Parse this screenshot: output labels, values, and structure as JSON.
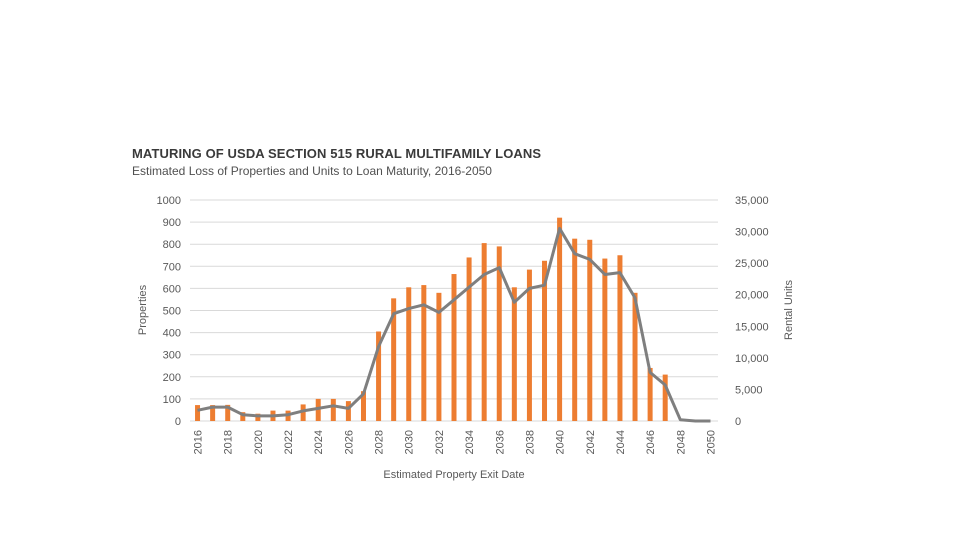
{
  "chart_data": {
    "type": "bar",
    "title": "MATURING OF USDA SECTION 515 RURAL MULTIFAMILY LOANS",
    "subtitle": "Estimated Loss of Properties and Units to Loan Maturity, 2016-2050",
    "xlabel": "Estimated Property Exit Date",
    "ylabel": "Properties",
    "y2label": "Rental Units",
    "ylim": [
      0,
      1000
    ],
    "y2lim": [
      0,
      35000
    ],
    "y_ticks": [
      "0",
      "100",
      "200",
      "300",
      "400",
      "500",
      "600",
      "700",
      "800",
      "900",
      "1000"
    ],
    "y2_ticks": [
      "0",
      "5,000",
      "10,000",
      "15,000",
      "20,000",
      "25,000",
      "30,000",
      "35,000"
    ],
    "x": [
      2016,
      2017,
      2018,
      2019,
      2020,
      2021,
      2022,
      2023,
      2024,
      2025,
      2026,
      2027,
      2028,
      2029,
      2030,
      2031,
      2032,
      2033,
      2034,
      2035,
      2036,
      2037,
      2038,
      2039,
      2040,
      2041,
      2042,
      2043,
      2044,
      2045,
      2046,
      2047,
      2048,
      2049,
      2050
    ],
    "x_tick_labels": [
      "2016",
      "2018",
      "2020",
      "2022",
      "2024",
      "2026",
      "2028",
      "2030",
      "2032",
      "2034",
      "2036",
      "2038",
      "2040",
      "2042",
      "2044",
      "2046",
      "2048",
      "2050"
    ],
    "series": [
      {
        "name": "Properties",
        "type": "bar",
        "axis": "left",
        "color": "#ed7d31",
        "values": [
          72,
          72,
          73,
          40,
          33,
          47,
          47,
          75,
          100,
          100,
          90,
          135,
          405,
          555,
          605,
          615,
          580,
          665,
          740,
          805,
          790,
          605,
          685,
          725,
          920,
          825,
          820,
          735,
          750,
          580,
          240,
          210,
          0,
          0,
          0
        ]
      },
      {
        "name": "Rental Units",
        "type": "line",
        "axis": "right",
        "color": "#7f7f7f",
        "values": [
          1700,
          2200,
          2200,
          1000,
          800,
          800,
          1000,
          1600,
          2000,
          2400,
          2000,
          4300,
          11800,
          17000,
          17800,
          18400,
          17200,
          19200,
          21200,
          23200,
          24300,
          18800,
          21000,
          21500,
          30500,
          26500,
          25600,
          23200,
          23500,
          19500,
          7700,
          5700,
          200,
          0,
          0
        ]
      }
    ]
  }
}
